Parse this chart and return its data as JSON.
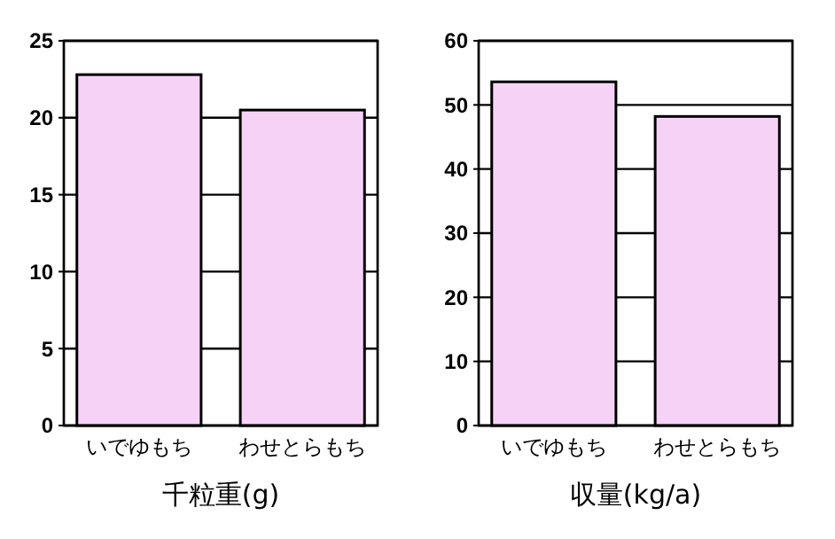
{
  "chart_data": [
    {
      "type": "bar",
      "xlabel": "千粒重(g)",
      "categories": [
        "いでゆもち",
        "わせとらもち"
      ],
      "values": [
        22.8,
        20.5
      ],
      "color": "#f7d2f7",
      "ylim": [
        0,
        25
      ],
      "yticks": [
        0,
        5,
        10,
        15,
        20,
        25
      ],
      "grid": "y"
    },
    {
      "type": "bar",
      "xlabel": "収量(kg/a)",
      "categories": [
        "いでゆもち",
        "わせとらもち"
      ],
      "values": [
        53.6,
        48.2
      ],
      "color": "#f7d2f7",
      "ylim": [
        0,
        60
      ],
      "yticks": [
        0,
        10,
        20,
        30,
        40,
        50,
        60
      ],
      "grid": "y"
    }
  ]
}
